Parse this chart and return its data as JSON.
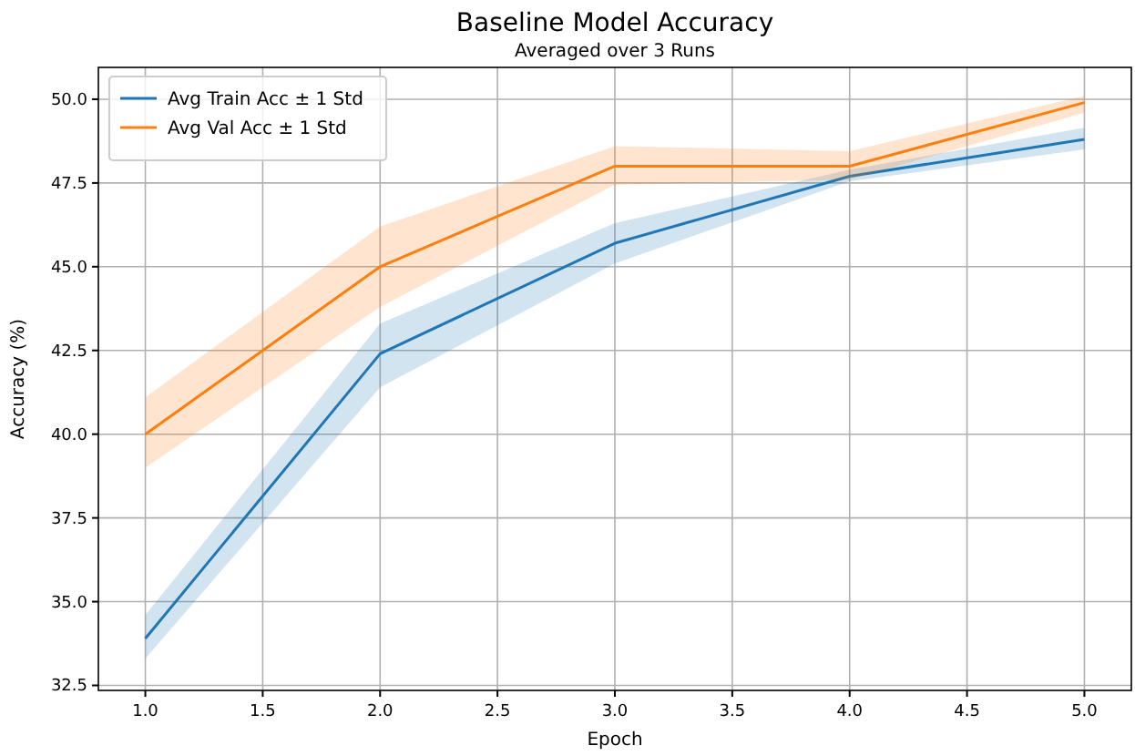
{
  "chart_data": {
    "type": "line",
    "title": "Baseline Model Accuracy",
    "subtitle": "Averaged over 3 Runs",
    "xlabel": "Epoch",
    "ylabel": "Accuracy (%)",
    "x": [
      1,
      2,
      3,
      4,
      5
    ],
    "series": [
      {
        "name": "Avg Train Acc ± 1 Std",
        "color": "#1f77b4",
        "values": [
          33.9,
          42.4,
          45.7,
          47.7,
          48.8
        ],
        "lower": [
          33.3,
          41.4,
          45.1,
          47.55,
          48.5
        ],
        "upper": [
          34.6,
          43.3,
          46.3,
          47.9,
          49.15
        ]
      },
      {
        "name": "Avg Val Acc ± 1 Std",
        "color": "#ff7f0e",
        "values": [
          40.0,
          45.0,
          48.0,
          48.0,
          49.9
        ],
        "lower": [
          39.0,
          43.8,
          47.45,
          47.6,
          49.6
        ],
        "upper": [
          41.1,
          46.2,
          48.6,
          48.45,
          50.1
        ]
      }
    ],
    "xlim": [
      0.8,
      5.2
    ],
    "xticks": [
      {
        "value": 1,
        "label": "1.0"
      },
      1.5,
      {
        "value": 2,
        "label": "2.0"
      },
      2.5,
      {
        "value": 3,
        "label": "3.0"
      },
      3.5,
      {
        "value": 4,
        "label": "4.0"
      },
      4.5,
      {
        "value": 5,
        "label": "5.0"
      }
    ],
    "ylim": [
      32.35,
      50.95
    ],
    "yticks": [
      32.5,
      {
        "value": 35,
        "label": "35.0"
      },
      37.5,
      {
        "value": 40,
        "label": "40.0"
      },
      42.5,
      {
        "value": 45,
        "label": "45.0"
      },
      47.5,
      {
        "value": 50,
        "label": "50.0"
      }
    ],
    "grid": true,
    "legend": "top left",
    "marker": "none",
    "line_style": "solid"
  }
}
